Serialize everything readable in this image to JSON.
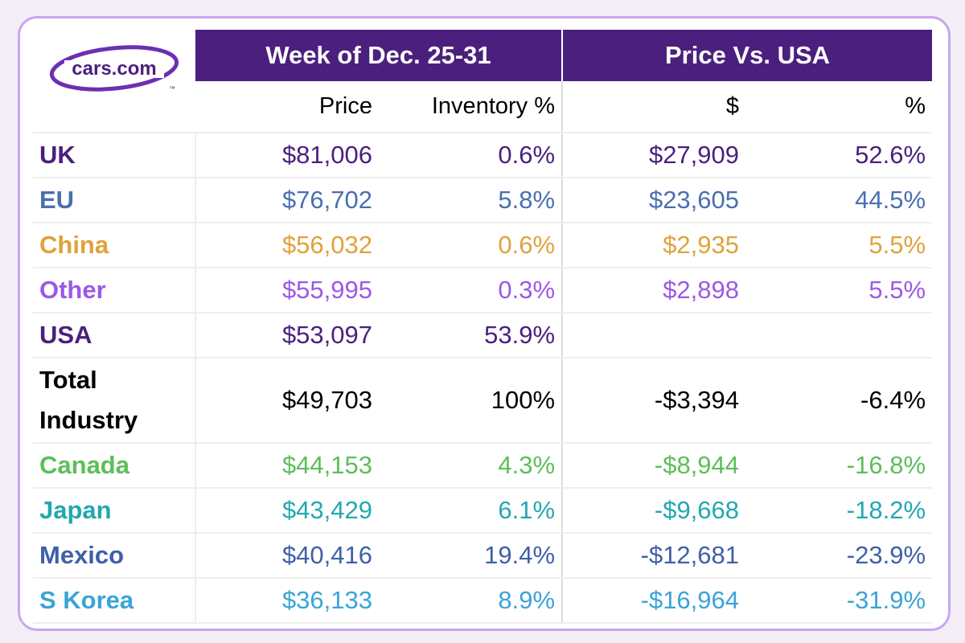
{
  "logo": {
    "text": "cars.com",
    "tm": "™",
    "ring_color": "#6b2fb3"
  },
  "header": {
    "group1": "Week of Dec. 25-31",
    "group2": "Price Vs. USA",
    "col_price": "Price",
    "col_inventory": "Inventory %",
    "col_dollar": "$",
    "col_pct": "%"
  },
  "chart_data": {
    "type": "table",
    "columns": [
      "Price",
      "Inventory %",
      "$",
      "%"
    ],
    "column_groups": [
      {
        "label": "Week of Dec. 25-31",
        "columns": [
          "Price",
          "Inventory %"
        ]
      },
      {
        "label": "Price Vs. USA",
        "columns": [
          "$",
          "%"
        ]
      }
    ],
    "rows": [
      {
        "label": "UK",
        "price": "$81,006",
        "inventory": "0.6%",
        "dollar": "$27,909",
        "pct": "52.6%",
        "color": "#4b1f7e"
      },
      {
        "label": "EU",
        "price": "$76,702",
        "inventory": "5.8%",
        "dollar": "$23,605",
        "pct": "44.5%",
        "color": "#4a6fb0"
      },
      {
        "label": "China",
        "price": "$56,032",
        "inventory": "0.6%",
        "dollar": "$2,935",
        "pct": "5.5%",
        "color": "#e0a23a"
      },
      {
        "label": "Other",
        "price": "$55,995",
        "inventory": "0.3%",
        "dollar": "$2,898",
        "pct": "5.5%",
        "color": "#9b59e6"
      },
      {
        "label": "USA",
        "price": "$53,097",
        "inventory": "53.9%",
        "dollar": "",
        "pct": "",
        "color": "#4b1f7e"
      },
      {
        "label": "Total Industry",
        "price": "$49,703",
        "inventory": "100%",
        "dollar": "-$3,394",
        "pct": "-6.4%",
        "color": "#000000"
      },
      {
        "label": "Canada",
        "price": "$44,153",
        "inventory": "4.3%",
        "dollar": "-$8,944",
        "pct": "-16.8%",
        "color": "#5cbf58"
      },
      {
        "label": "Japan",
        "price": "$43,429",
        "inventory": "6.1%",
        "dollar": "-$9,668",
        "pct": "-18.2%",
        "color": "#22a8b0"
      },
      {
        "label": "Mexico",
        "price": "$40,416",
        "inventory": "19.4%",
        "dollar": "-$12,681",
        "pct": "-23.9%",
        "color": "#3f5fa8"
      },
      {
        "label": "S Korea",
        "price": "$36,133",
        "inventory": "8.9%",
        "dollar": "-$16,964",
        "pct": "-31.9%",
        "color": "#3aa4d8"
      }
    ]
  }
}
